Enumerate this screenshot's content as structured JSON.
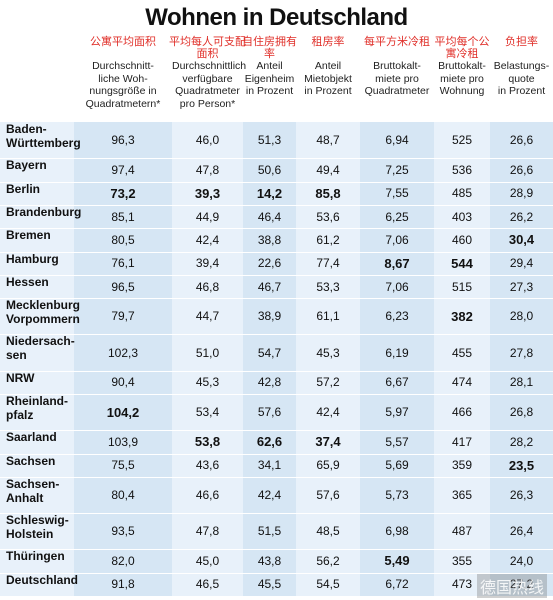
{
  "title": "Wohnen in Deutschland",
  "columns": [
    {
      "note": "公寓平均面积",
      "header": [
        "Durchschnitt-",
        "liche Woh-",
        "nungsgröße in",
        "Quadratmetern*"
      ]
    },
    {
      "note": "平均每人可支配面积",
      "header": [
        "Durchschnittlich",
        "verfügbare",
        "Quadratmeter",
        "pro Person*"
      ]
    },
    {
      "note": "自住房拥有率",
      "header": [
        "Anteil",
        "Eigenheim",
        "in Prozent"
      ]
    },
    {
      "note": "租房率",
      "header": [
        "Anteil",
        "Mietobjekt",
        "in Prozent"
      ]
    },
    {
      "note": "每平方米冷租",
      "header": [
        "Bruttokalt-",
        "miete pro",
        "Quadratmeter"
      ]
    },
    {
      "note": "平均每个公寓冷租",
      "header": [
        "Bruttokalt-",
        "miete pro",
        "Wohnung"
      ]
    },
    {
      "note": "负担率",
      "header": [
        "Belastungs-",
        "quote",
        "in Prozent"
      ]
    }
  ],
  "rows": [
    {
      "name": [
        "Baden-",
        "Württemberg"
      ],
      "cells": [
        "96,3",
        "46,0",
        "51,3",
        "48,7",
        "6,94",
        "525",
        "26,6"
      ],
      "bold": []
    },
    {
      "name": [
        "Bayern"
      ],
      "cells": [
        "97,4",
        "47,8",
        "50,6",
        "49,4",
        "7,25",
        "536",
        "26,6"
      ],
      "bold": []
    },
    {
      "name": [
        "Berlin"
      ],
      "cells": [
        "73,2",
        "39,3",
        "14,2",
        "85,8",
        "7,55",
        "485",
        "28,9"
      ],
      "bold": [
        0,
        1,
        2,
        3
      ]
    },
    {
      "name": [
        "Brandenburg"
      ],
      "cells": [
        "85,1",
        "44,9",
        "46,4",
        "53,6",
        "6,25",
        "403",
        "26,2"
      ],
      "bold": []
    },
    {
      "name": [
        "Bremen"
      ],
      "cells": [
        "80,5",
        "42,4",
        "38,8",
        "61,2",
        "7,06",
        "460",
        "30,4"
      ],
      "bold": [
        6
      ]
    },
    {
      "name": [
        "Hamburg"
      ],
      "cells": [
        "76,1",
        "39,4",
        "22,6",
        "77,4",
        "8,67",
        "544",
        "29,4"
      ],
      "bold": [
        4,
        5
      ]
    },
    {
      "name": [
        "Hessen"
      ],
      "cells": [
        "96,5",
        "46,8",
        "46,7",
        "53,3",
        "7,06",
        "515",
        "27,3"
      ],
      "bold": []
    },
    {
      "name": [
        "Mecklenburg",
        "Vorpommern"
      ],
      "cells": [
        "79,7",
        "44,7",
        "38,9",
        "61,1",
        "6,23",
        "382",
        "28,0"
      ],
      "bold": [
        5
      ]
    },
    {
      "name": [
        "Niedersach-",
        "sen"
      ],
      "cells": [
        "102,3",
        "51,0",
        "54,7",
        "45,3",
        "6,19",
        "455",
        "27,8"
      ],
      "bold": []
    },
    {
      "name": [
        "NRW"
      ],
      "cells": [
        "90,4",
        "45,3",
        "42,8",
        "57,2",
        "6,67",
        "474",
        "28,1"
      ],
      "bold": []
    },
    {
      "name": [
        "Rheinland-",
        "pfalz"
      ],
      "cells": [
        "104,2",
        "53,4",
        "57,6",
        "42,4",
        "5,97",
        "466",
        "26,8"
      ],
      "bold": [
        0
      ]
    },
    {
      "name": [
        "Saarland"
      ],
      "cells": [
        "103,9",
        "53,8",
        "62,6",
        "37,4",
        "5,57",
        "417",
        "28,2"
      ],
      "bold": [
        1,
        2,
        3
      ]
    },
    {
      "name": [
        "Sachsen"
      ],
      "cells": [
        "75,5",
        "43,6",
        "34,1",
        "65,9",
        "5,69",
        "359",
        "23,5"
      ],
      "bold": [
        6
      ]
    },
    {
      "name": [
        "Sachsen-",
        "Anhalt"
      ],
      "cells": [
        "80,4",
        "46,6",
        "42,4",
        "57,6",
        "5,73",
        "365",
        "26,3"
      ],
      "bold": []
    },
    {
      "name": [
        "Schleswig-",
        "Holstein"
      ],
      "cells": [
        "93,5",
        "47,8",
        "51,5",
        "48,5",
        "6,98",
        "487",
        "26,4"
      ],
      "bold": []
    },
    {
      "name": [
        "Thüringen"
      ],
      "cells": [
        "82,0",
        "45,0",
        "43,8",
        "56,2",
        "5,49",
        "355",
        "24,0"
      ],
      "bold": [
        4
      ]
    },
    {
      "name": [
        "Deutschland"
      ],
      "cells": [
        "91,8",
        "46,5",
        "45,5",
        "54,5",
        "6,72",
        "473",
        "27,2"
      ],
      "bold": []
    }
  ],
  "watermark": "德国热线"
}
